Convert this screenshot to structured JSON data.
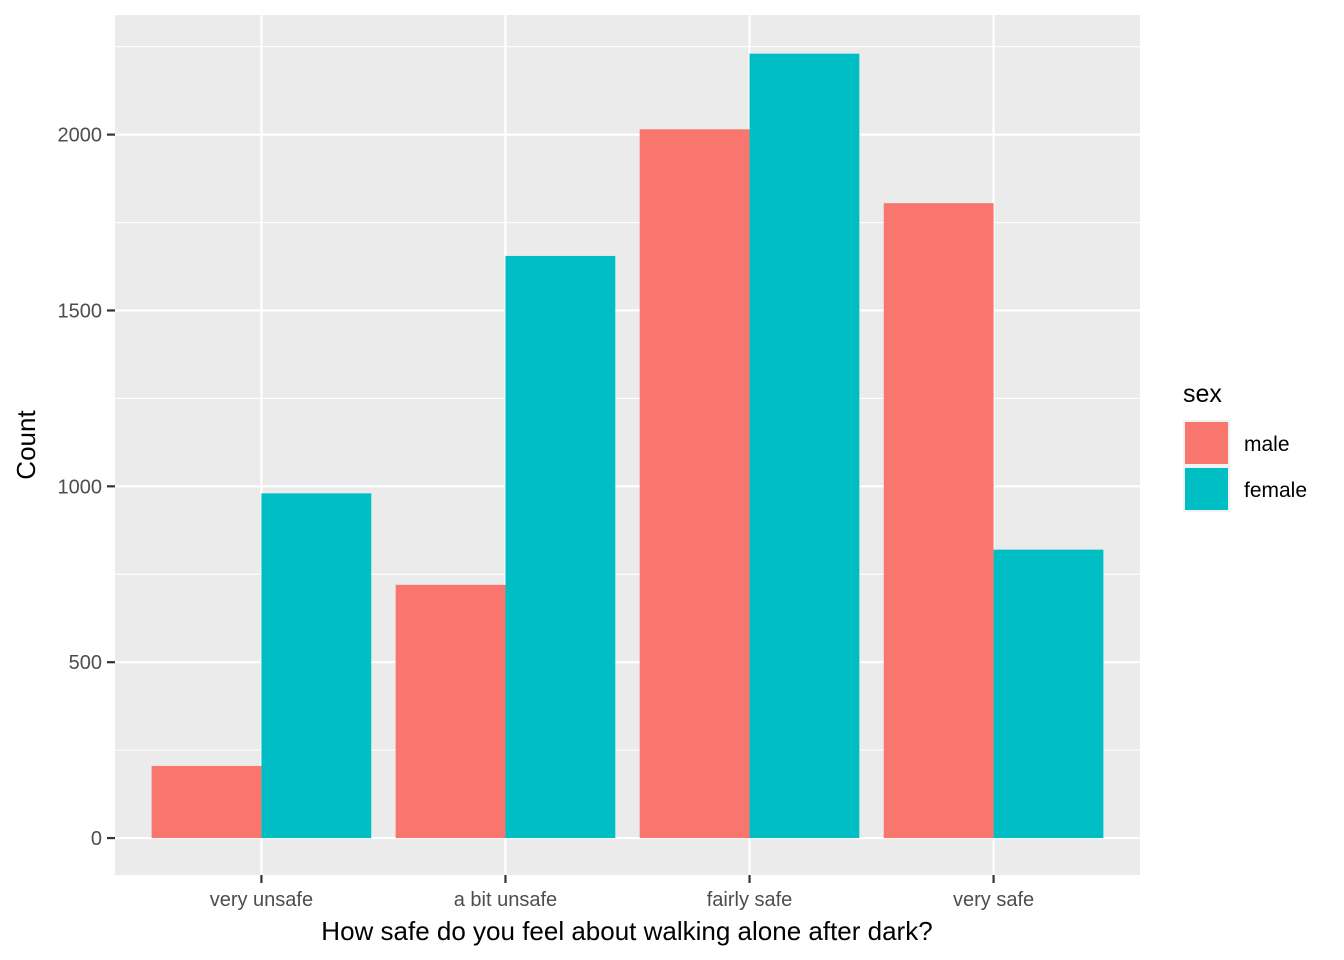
{
  "chart_data": {
    "type": "bar",
    "title": "",
    "xlabel": "How safe do you feel about walking alone after dark?",
    "ylabel": "Count",
    "categories": [
      "very unsafe",
      "a bit unsafe",
      "fairly safe",
      "very safe"
    ],
    "series": [
      {
        "name": "male",
        "color": "#F8766D",
        "values": [
          205,
          720,
          2015,
          1805
        ]
      },
      {
        "name": "female",
        "color": "#00BFC4",
        "values": [
          980,
          1655,
          2230,
          820
        ]
      }
    ],
    "ylim": [
      -105,
      2340
    ],
    "yticks": [
      0,
      500,
      1000,
      1500,
      2000
    ],
    "ytick_labels": [
      "0",
      "500",
      "1000",
      "1500",
      "2000"
    ],
    "grid": true,
    "panel_background": "#EBEBEB",
    "legend": {
      "title": "sex",
      "position": "right"
    }
  }
}
